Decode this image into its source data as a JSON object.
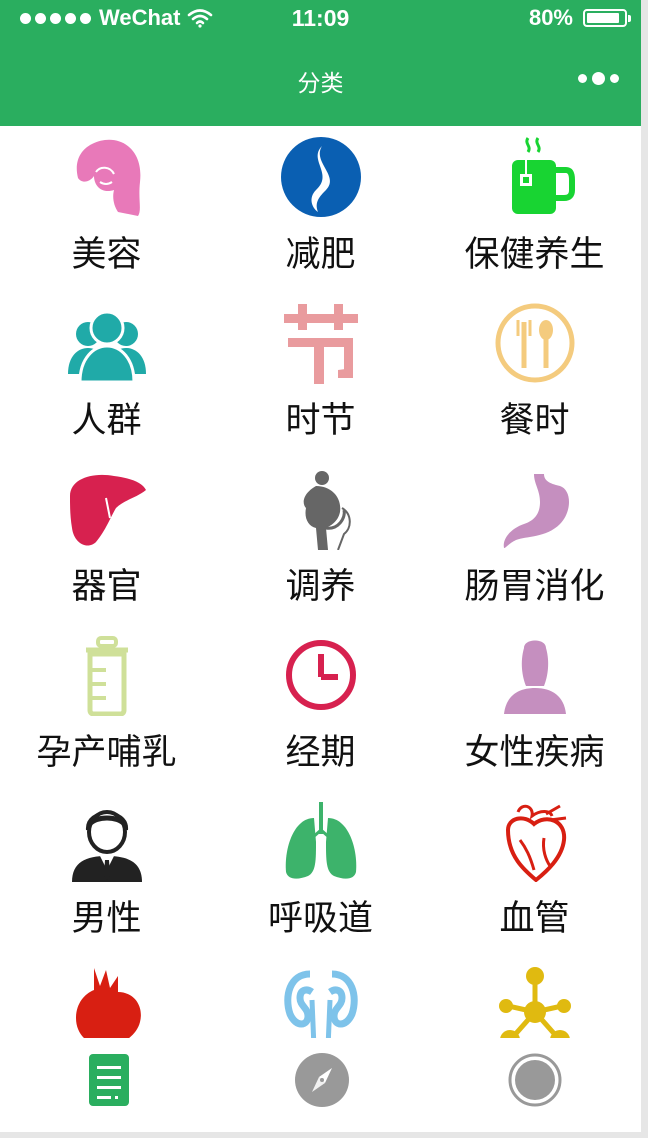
{
  "status_bar": {
    "carrier": "WeChat",
    "time": "11:09",
    "battery": "80%",
    "signal_icon": "signal-dots-icon",
    "wifi_icon": "wifi-icon",
    "battery_icon": "battery-icon"
  },
  "nav": {
    "title": "分类",
    "more_icon": "more-dots-icon"
  },
  "categories": [
    {
      "label": "美容",
      "icon": "woman-face-icon",
      "color": "#e879b9"
    },
    {
      "label": "减肥",
      "icon": "waist-curve-icon",
      "color": "#0a5fb2"
    },
    {
      "label": "保健养生",
      "icon": "tea-cup-icon",
      "color": "#18d432"
    },
    {
      "label": "人群",
      "icon": "people-group-icon",
      "color": "#20aaa8"
    },
    {
      "label": "时节",
      "icon": "jie-character-icon",
      "color": "#e99b9e"
    },
    {
      "label": "餐时",
      "icon": "fork-spoon-icon",
      "color": "#f4cb7e"
    },
    {
      "label": "器官",
      "icon": "liver-icon",
      "color": "#d7214f"
    },
    {
      "label": "调养",
      "icon": "pregnant-figure-icon",
      "color": "#666666"
    },
    {
      "label": "肠胃消化",
      "icon": "stomach-icon",
      "color": "#c58fbf"
    },
    {
      "label": "孕产哺乳",
      "icon": "baby-bottle-icon",
      "color": "#cfe099"
    },
    {
      "label": "经期",
      "icon": "clock-icon",
      "color": "#d7214f"
    },
    {
      "label": "女性疾病",
      "icon": "woman-silhouette-icon",
      "color": "#c58fbf"
    },
    {
      "label": "男性",
      "icon": "man-suit-icon",
      "color": "#222222"
    },
    {
      "label": "呼吸道",
      "icon": "lungs-icon",
      "color": "#3db36b"
    },
    {
      "label": "血管",
      "icon": "heart-vessels-icon",
      "color": "#d81f12"
    },
    {
      "label": "",
      "icon": "anatomical-heart-icon",
      "color": "#d81f12"
    },
    {
      "label": "",
      "icon": "kidneys-icon",
      "color": "#7ec3ea"
    },
    {
      "label": "",
      "icon": "molecule-icon",
      "color": "#e0ba10"
    }
  ],
  "tabs": [
    {
      "icon": "list-document-icon",
      "color": "#2aae5f",
      "active": true
    },
    {
      "icon": "compass-icon",
      "color": "#999999",
      "active": false
    },
    {
      "icon": "circle-record-icon",
      "color": "#999999",
      "active": false
    }
  ],
  "colors": {
    "brand_green": "#2aae5f",
    "background": "#ffffff"
  }
}
